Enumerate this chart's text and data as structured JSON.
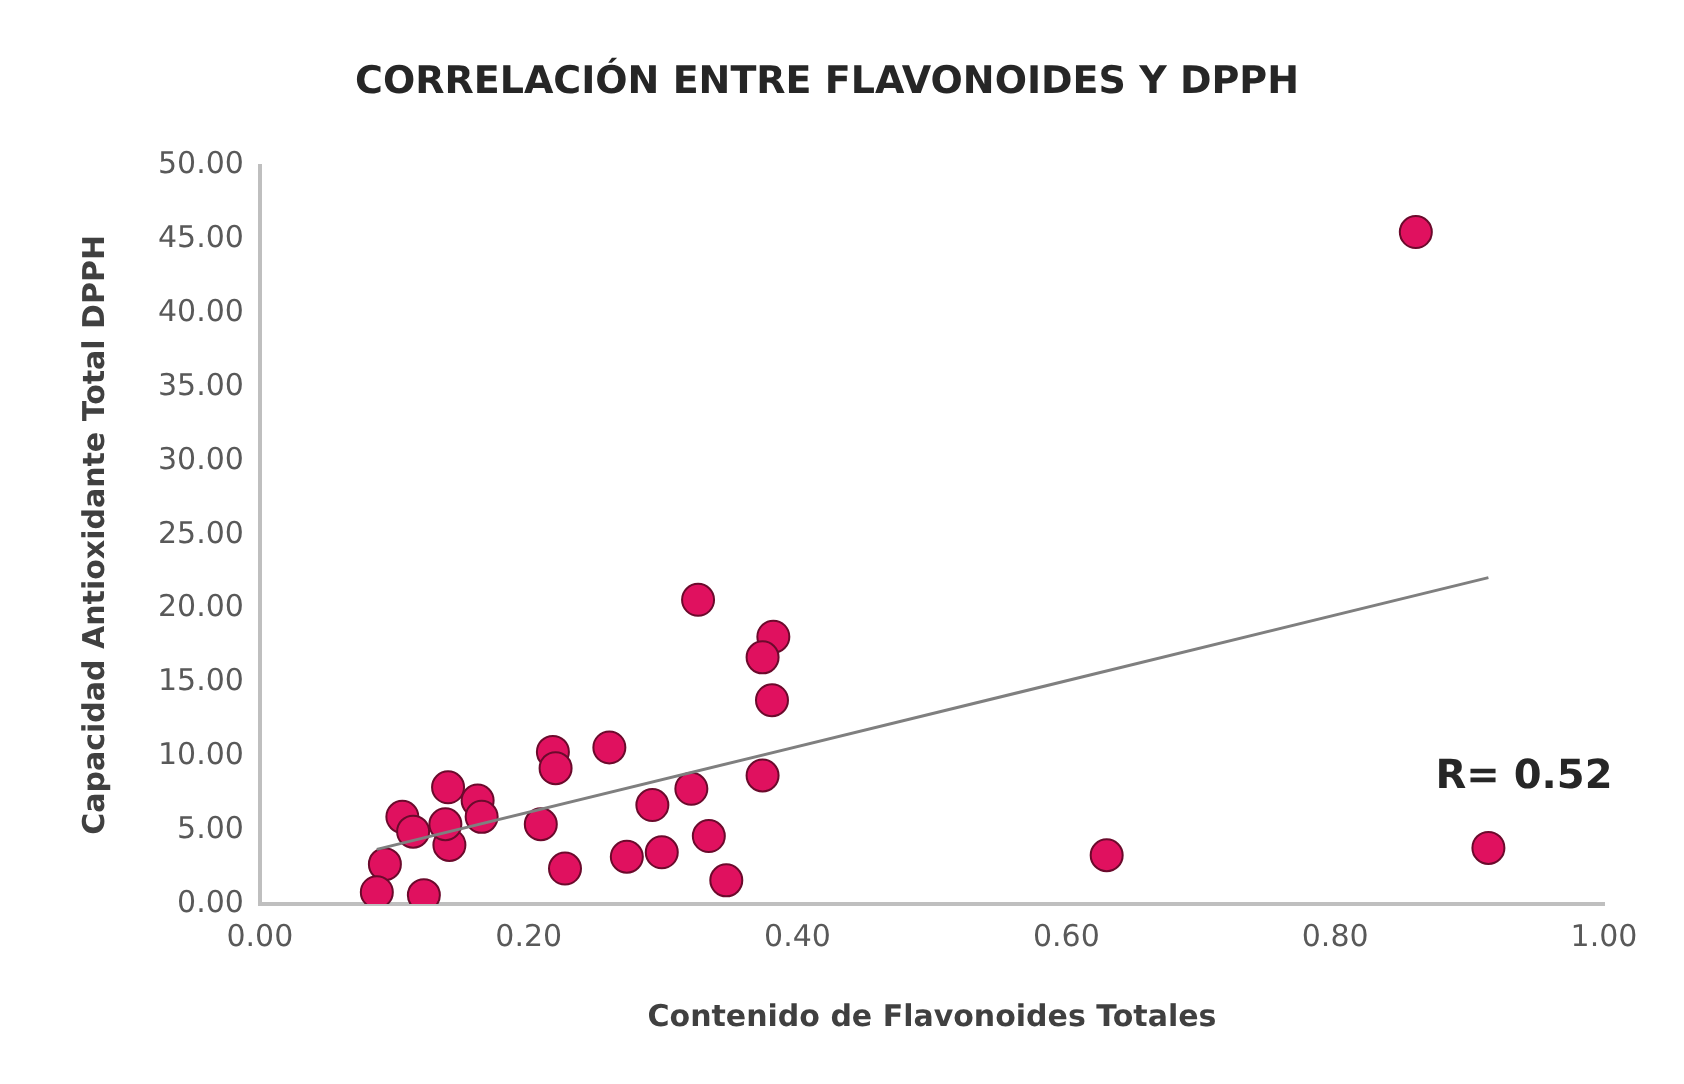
{
  "chart_data": {
    "type": "scatter",
    "title": "CORRELACIÓN ENTRE FLAVONOIDES Y DPPH",
    "xlabel": "Contenido de Flavonoides Totales",
    "ylabel": "Capacidad Antioxidante Total DPPH",
    "xlim": [
      0,
      1
    ],
    "xticks": [
      {
        "value": 0,
        "label": "0.00"
      },
      {
        "value": 0.2,
        "label": "0.20"
      },
      {
        "value": 0.4,
        "label": "0.40"
      },
      {
        "value": 0.6,
        "label": "0.60"
      },
      {
        "value": 0.8,
        "label": "0.80"
      },
      {
        "value": 1,
        "label": "1.00"
      }
    ],
    "ylim": [
      0,
      50
    ],
    "yticks": [
      {
        "value": 0,
        "label": "0.00"
      },
      {
        "value": 5,
        "label": "5.00"
      },
      {
        "value": 10,
        "label": "10.00"
      },
      {
        "value": 15,
        "label": "15.00"
      },
      {
        "value": 20,
        "label": "20.00"
      },
      {
        "value": 25,
        "label": "25.00"
      },
      {
        "value": 30,
        "label": "30.00"
      },
      {
        "value": 35,
        "label": "35.00"
      },
      {
        "value": 40,
        "label": "40.00"
      },
      {
        "value": 45,
        "label": "45.00"
      },
      {
        "value": 50,
        "label": "50.00"
      }
    ],
    "grid": false,
    "legend": false,
    "marker": "circle",
    "annotations": [
      "R= 0.52"
    ],
    "series": [
      {
        "color": "#e0115f",
        "x": [
          0.326,
          0.382,
          0.374,
          0.381,
          0.218,
          0.22,
          0.26,
          0.374,
          0.321,
          0.292,
          0.334,
          0.347,
          0.299,
          0.273,
          0.227,
          0.209,
          0.14,
          0.162,
          0.165,
          0.106,
          0.114,
          0.141,
          0.138,
          0.093,
          0.087,
          0.122,
          0.86,
          0.63,
          0.914
        ],
        "values": [
          20.6,
          18.1,
          16.7,
          13.8,
          10.3,
          9.2,
          10.6,
          8.7,
          7.8,
          6.7,
          4.6,
          1.6,
          3.5,
          3.2,
          2.4,
          5.4,
          7.9,
          7.0,
          5.9,
          5.9,
          4.9,
          4.0,
          5.4,
          2.7,
          0.8,
          0.6,
          45.5,
          3.3,
          3.8
        ]
      },
      {
        "type": "line",
        "color": "#7f7f7f",
        "marker": "none",
        "line_style": "solid",
        "x": [
          0.087,
          0.914
        ],
        "values": [
          3.7,
          22.1
        ]
      }
    ]
  }
}
